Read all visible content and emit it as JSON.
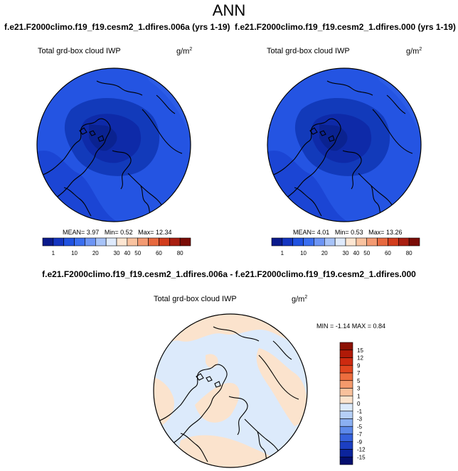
{
  "title": "ANN",
  "panels": [
    {
      "case": "f.e21.F2000climo.f19_f19.cesm2_1.dfires.006a (yrs 1-19)",
      "variable": "Total grd-box cloud IWP",
      "units": "g/m",
      "units_exp": "2",
      "stats": {
        "mean_label": "MEAN=",
        "mean": "3.97",
        "min_label": "Min=",
        "min": "0.52",
        "max_label": "Max=",
        "max": "12.34"
      }
    },
    {
      "case": "f.e21.F2000climo.f19_f19.cesm2_1.dfires.000 (yrs 1-19)",
      "variable": "Total grd-box cloud IWP",
      "units": "g/m",
      "units_exp": "2",
      "stats": {
        "mean_label": "MEAN=",
        "mean": "4.01",
        "min_label": "Min=",
        "min": "0.53",
        "max_label": "Max=",
        "max": "13.26"
      }
    }
  ],
  "colorbar": {
    "labels": [
      "1",
      "10",
      "20",
      "30",
      "40",
      "50",
      "60",
      "80"
    ],
    "colors": [
      "#0a1a8c",
      "#1435c0",
      "#2052e0",
      "#3a6ef0",
      "#6d95f5",
      "#a7c3f8",
      "#dfeafc",
      "#fde6d2",
      "#f9c3a0",
      "#f39a72",
      "#e7693f",
      "#d23c1c",
      "#a81e10",
      "#7a0c06"
    ]
  },
  "diff": {
    "title": "f.e21.F2000climo.f19_f19.cesm2_1.dfires.006a - f.e21.F2000climo.f19_f19.cesm2_1.dfires.000",
    "variable": "Total grd-box cloud IWP",
    "units": "g/m",
    "units_exp": "2",
    "stats": "MIN = -1.14  MAX =  0.84",
    "colorbar_labels": [
      "15",
      "12",
      "9",
      "7",
      "5",
      "3",
      "1",
      "0",
      "-1",
      "-3",
      "-5",
      "-7",
      "-9",
      "-12",
      "-15"
    ],
    "colorbar_colors": [
      "#8c1204",
      "#b01a08",
      "#cd2a10",
      "#e1461f",
      "#ed6e3e",
      "#f49a6c",
      "#f8c19c",
      "#fbe3cd",
      "#dceafb",
      "#b5cff7",
      "#8bb0f2",
      "#5c89ea",
      "#3561dc",
      "#1c3fc2",
      "#0c249c",
      "#050f6e"
    ]
  },
  "map_colors": {
    "ocean_field": "#1f4fe0",
    "polar_core": "#0e2aa8",
    "diff_positive": "#fbe3cd",
    "diff_negative": "#dceafb"
  }
}
